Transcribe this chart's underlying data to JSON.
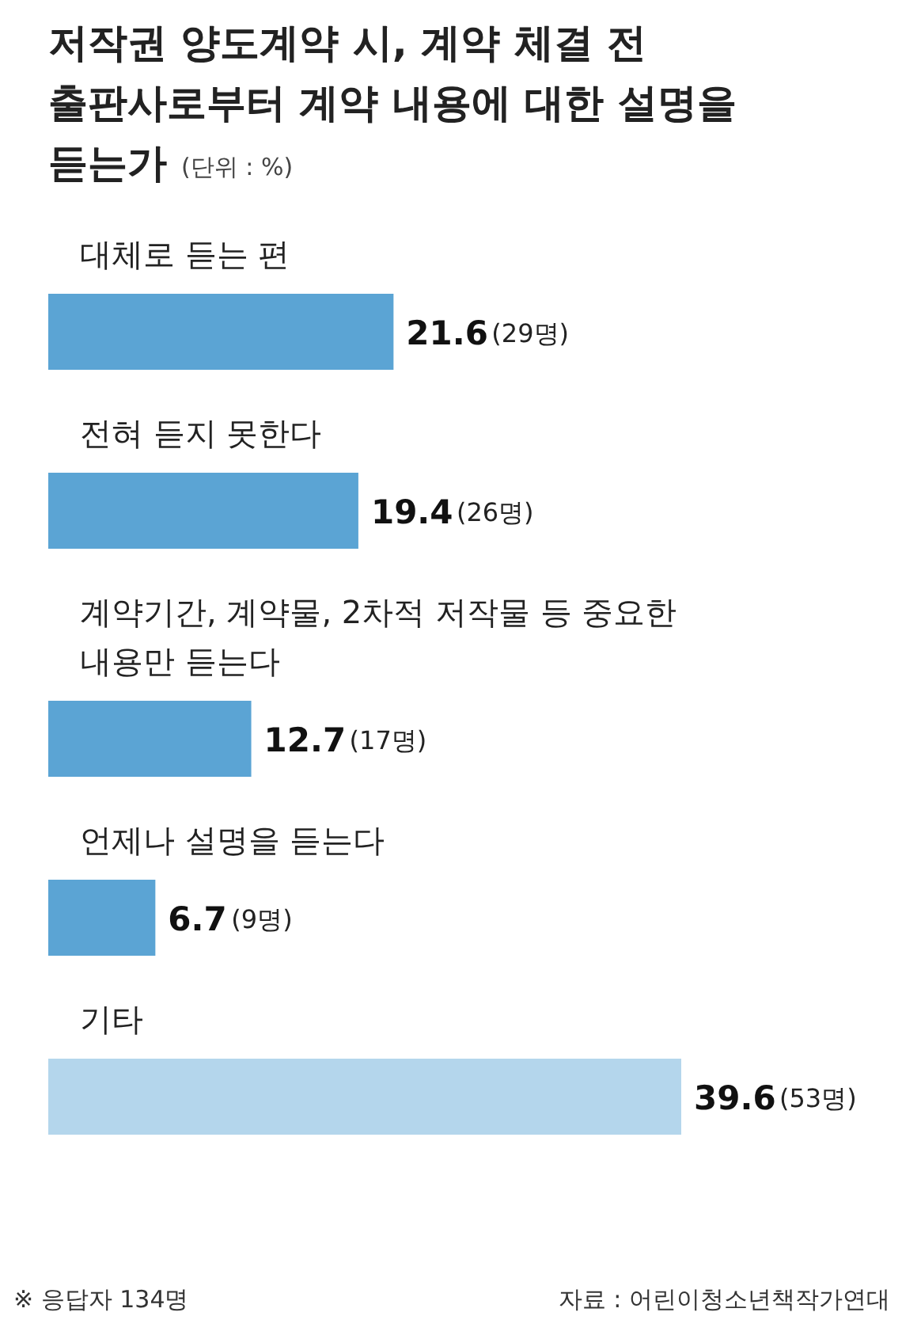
{
  "chart_data": {
    "type": "bar",
    "orientation": "horizontal",
    "title": "저작권 양도계약 시, 계약 체결 전 출판사로부터 계약 내용에 대한 설명을 듣는가",
    "subtitle": "(단위 : %)",
    "categories": [
      "대체로 듣는 편",
      "전혀 듣지 못한다",
      "계약기간, 계약물, 2차적 저작물 등 중요한 내용만 듣는다",
      "언제나 설명을 듣는다",
      "기타"
    ],
    "values": [
      21.6,
      19.4,
      12.7,
      6.7,
      39.6
    ],
    "colors": [
      "#5ba4d4",
      "#5ba4d4",
      "#5ba4d4",
      "#5ba4d4",
      "#b4d6ec"
    ],
    "value_labels": [
      "21.6(29명)",
      "19.4(26명)",
      "12.7(17명)",
      "6.7(9명)",
      "39.6(53명)"
    ],
    "annotations": [
      "※ 응답자 134명",
      "자료 : 어린이청소년책작가연대"
    ],
    "grid": false,
    "tick_labels": false
  }
}
